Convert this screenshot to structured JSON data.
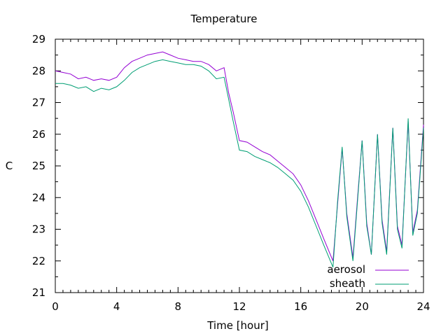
{
  "chart_data": {
    "type": "line",
    "title": "Temperature",
    "xlabel": "Time [hour]",
    "ylabel": "C",
    "xlim": [
      0,
      24
    ],
    "ylim": [
      21,
      29
    ],
    "xticks": [
      0,
      4,
      8,
      12,
      16,
      20,
      24
    ],
    "yticks": [
      21,
      22,
      23,
      24,
      25,
      26,
      27,
      28,
      29
    ],
    "grid": false,
    "legend_position": "bottom-right",
    "series": [
      {
        "name": "aerosol",
        "color": "#9400d3",
        "x": [
          0,
          0.5,
          1,
          1.5,
          2,
          2.5,
          3,
          3.5,
          4,
          4.5,
          5,
          5.5,
          6,
          6.5,
          7,
          7.5,
          8,
          8.5,
          9,
          9.5,
          10,
          10.5,
          11,
          11.3,
          11.6,
          12,
          12.5,
          13,
          13.5,
          14,
          14.5,
          15,
          15.5,
          16,
          16.5,
          17,
          17.5,
          18.1,
          18.4,
          18.7,
          19,
          19.4,
          19.7,
          20,
          20.3,
          20.6,
          21,
          21.3,
          21.6,
          22,
          22.3,
          22.6,
          23,
          23.3,
          23.6,
          24
        ],
        "y": [
          28.0,
          27.95,
          27.9,
          27.75,
          27.8,
          27.7,
          27.75,
          27.7,
          27.8,
          28.1,
          28.3,
          28.4,
          28.5,
          28.55,
          28.6,
          28.5,
          28.4,
          28.35,
          28.3,
          28.3,
          28.2,
          28.0,
          28.1,
          27.3,
          26.7,
          25.8,
          25.75,
          25.6,
          25.45,
          25.35,
          25.15,
          24.95,
          24.75,
          24.4,
          23.9,
          23.3,
          22.7,
          22.0,
          23.8,
          25.55,
          23.5,
          22.1,
          24.0,
          25.8,
          23.2,
          22.2,
          26.0,
          23.3,
          22.3,
          26.2,
          23.1,
          22.5,
          26.4,
          22.9,
          23.6,
          26.3
        ]
      },
      {
        "name": "sheath",
        "color": "#009e73",
        "x": [
          0,
          0.5,
          1,
          1.5,
          2,
          2.5,
          3,
          3.5,
          4,
          4.5,
          5,
          5.5,
          6,
          6.5,
          7,
          7.5,
          8,
          8.5,
          9,
          9.5,
          10,
          10.5,
          11,
          11.3,
          11.6,
          12,
          12.5,
          13,
          13.5,
          14,
          14.5,
          15,
          15.5,
          16,
          16.5,
          17,
          17.5,
          18.1,
          18.4,
          18.7,
          19,
          19.4,
          19.7,
          20,
          20.3,
          20.6,
          21,
          21.3,
          21.6,
          22,
          22.3,
          22.6,
          23,
          23.3,
          23.6,
          24
        ],
        "y": [
          27.6,
          27.6,
          27.55,
          27.45,
          27.5,
          27.35,
          27.45,
          27.4,
          27.5,
          27.7,
          27.95,
          28.1,
          28.2,
          28.3,
          28.35,
          28.3,
          28.25,
          28.2,
          28.2,
          28.15,
          28.0,
          27.75,
          27.8,
          27.1,
          26.4,
          25.5,
          25.45,
          25.3,
          25.2,
          25.1,
          24.95,
          24.75,
          24.55,
          24.2,
          23.7,
          23.1,
          22.5,
          21.8,
          23.9,
          25.6,
          23.4,
          22.0,
          23.9,
          25.8,
          23.1,
          22.2,
          26.0,
          23.2,
          22.2,
          26.2,
          23.0,
          22.4,
          26.5,
          22.8,
          23.5,
          26.2
        ]
      }
    ]
  }
}
